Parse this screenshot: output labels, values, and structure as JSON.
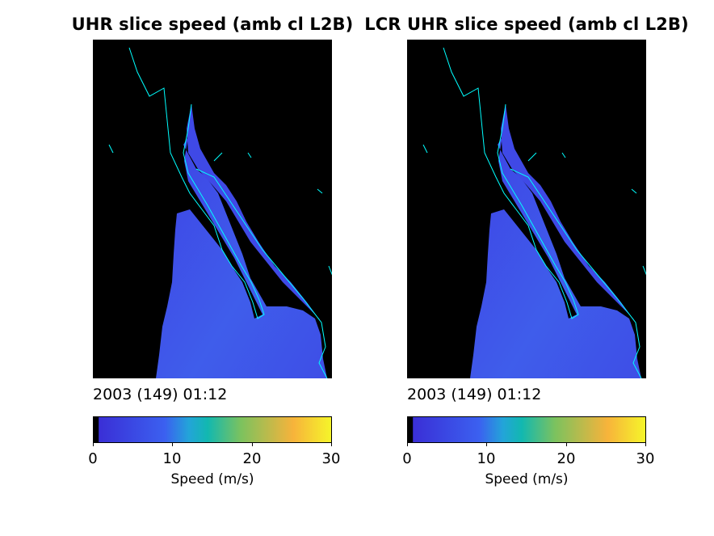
{
  "colors": {
    "ocean_low": "#3d3ae0",
    "ocean_mid": "#3f61ea",
    "coast": "#00ffff",
    "land": "#000000",
    "colorbar_stops": [
      "#000000",
      "#3a2fd6",
      "#3b60f0",
      "#23a4d9",
      "#12b8b0",
      "#7cc25e",
      "#f7b33b",
      "#f5f52a"
    ]
  },
  "chart_data": [
    {
      "type": "heatmap",
      "title": "UHR slice speed (amb cl L2B)",
      "timestamp": "2003 (149) 01:12",
      "colorbar": {
        "label": "Speed (m/s)",
        "range": [
          0,
          30
        ],
        "ticks": [
          "0",
          "10",
          "20",
          "30"
        ]
      }
    },
    {
      "type": "heatmap",
      "title": "LCR UHR slice speed (amb cl L2B)",
      "timestamp": "2003 (149) 01:12",
      "colorbar": {
        "label": "Speed (m/s)",
        "range": [
          0,
          30
        ],
        "ticks": [
          "0",
          "10",
          "20",
          "30"
        ]
      }
    }
  ]
}
